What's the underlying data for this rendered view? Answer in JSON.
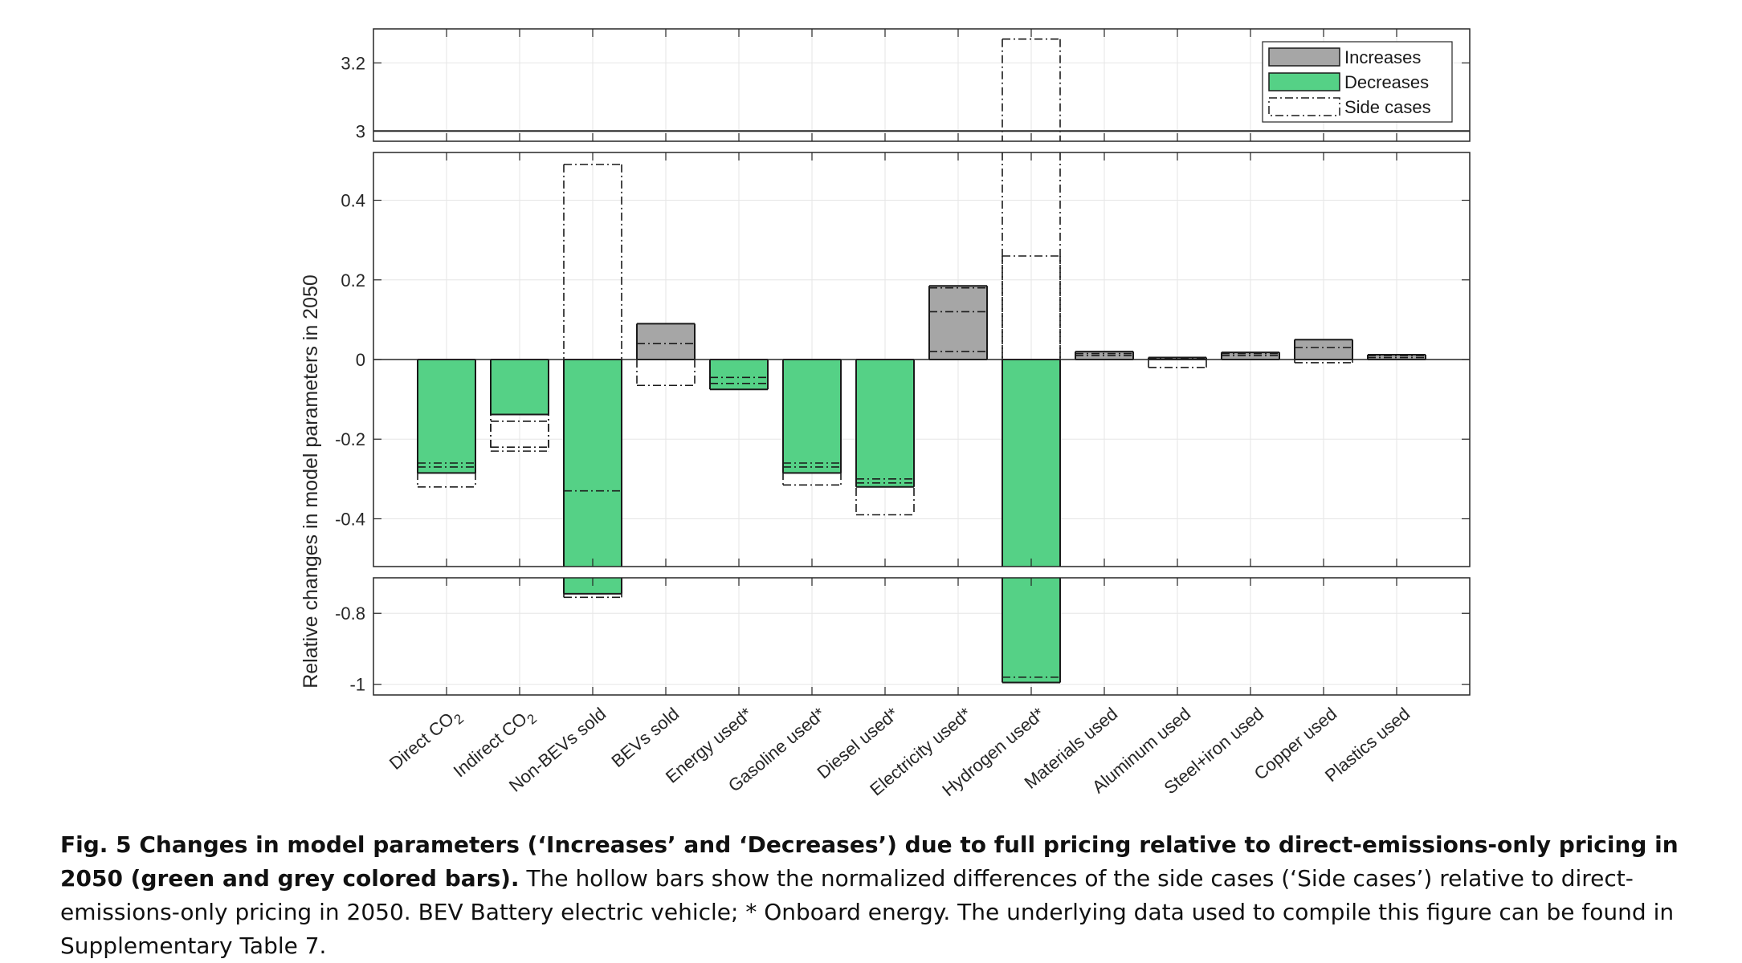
{
  "chart_data": {
    "type": "bar",
    "ylabel": "Relative changes in model parameters in 2050",
    "xlabel": "",
    "title": "",
    "broken_axis": true,
    "segments": [
      {
        "ylim": [
          2.97,
          3.3
        ],
        "ticks": [
          3,
          3.2
        ],
        "tick_labels": [
          "3",
          "3.2"
        ]
      },
      {
        "ylim": [
          -0.52,
          0.52
        ],
        "ticks": [
          -0.4,
          -0.2,
          0,
          0.2,
          0.4
        ],
        "tick_labels": [
          "-0.4",
          "-0.2",
          "0",
          "0.2",
          "0.4"
        ]
      },
      {
        "ylim": [
          -1.03,
          -0.7
        ],
        "ticks": [
          -1,
          -0.8
        ],
        "tick_labels": [
          "-1",
          "-0.8"
        ]
      }
    ],
    "grid": true,
    "legend_position": "top-right",
    "legend": [
      {
        "label": "Increases",
        "style": "filled",
        "color": "#a6a6a6"
      },
      {
        "label": "Decreases",
        "style": "filled",
        "color": "#55d186"
      },
      {
        "label": "Side cases",
        "style": "dash-dot outline",
        "color": "#000000"
      }
    ],
    "categories": [
      "Direct CO2",
      "Indirect CO2",
      "Non-BEVs sold",
      "BEVs sold",
      "Energy used*",
      "Gasoline used*",
      "Diesel used*",
      "Electricity used*",
      "Hydrogen used*",
      "Materials used",
      "Aluminum used",
      "Steel+iron used",
      "Copper used",
      "Plastics used"
    ],
    "category_labels": [
      {
        "text": "Direct CO",
        "sub": "2"
      },
      {
        "text": "Indirect CO",
        "sub": "2"
      },
      {
        "text": "Non-BEVs sold",
        "sub": ""
      },
      {
        "text": "BEVs sold",
        "sub": ""
      },
      {
        "text": "Energy used*",
        "sub": ""
      },
      {
        "text": "Gasoline used*",
        "sub": ""
      },
      {
        "text": "Diesel used*",
        "sub": ""
      },
      {
        "text": "Electricity used*",
        "sub": ""
      },
      {
        "text": "Hydrogen used*",
        "sub": ""
      },
      {
        "text": "Materials used",
        "sub": ""
      },
      {
        "text": "Aluminum used",
        "sub": ""
      },
      {
        "text": "Steel+iron used",
        "sub": ""
      },
      {
        "text": "Copper used",
        "sub": ""
      },
      {
        "text": "Plastics used",
        "sub": ""
      }
    ],
    "series": [
      {
        "name": "Increases / Decreases",
        "values": [
          -0.285,
          -0.138,
          -0.745,
          0.09,
          -0.075,
          -0.285,
          -0.32,
          0.185,
          -0.995,
          0.02,
          0.005,
          0.018,
          0.05,
          0.012
        ]
      },
      {
        "name": "Side cases",
        "values": [
          [
            -0.32,
            -0.26,
            -0.27
          ],
          [
            -0.23,
            -0.155,
            -0.22
          ],
          [
            0.49,
            -0.33,
            -0.755
          ],
          [
            -0.065,
            0.04
          ],
          [
            -0.06,
            -0.045
          ],
          [
            -0.315,
            -0.26,
            -0.27
          ],
          [
            -0.39,
            -0.3,
            -0.31
          ],
          [
            0.18,
            0.12,
            0.02
          ],
          [
            3.27,
            0.26,
            -0.98
          ],
          [
            0.015,
            0.01
          ],
          [
            -0.02,
            0.003
          ],
          [
            0.015,
            0.01
          ],
          [
            -0.008,
            0.03
          ],
          [
            0.01,
            0.005
          ]
        ]
      }
    ]
  },
  "caption": {
    "bold": "Fig. 5 Changes in model parameters (‘Increases’ and ‘Decreases’) due to full pricing relative to direct-emissions-only pricing in 2050 (green and grey colored bars).",
    "text": " The hollow bars show the normalized differences of the side cases (‘Side cases’) relative to direct-emissions-only pricing in 2050. BEV Battery electric vehicle; * Onboard energy. The underlying data used to compile this figure can be found in Supplementary Table 7."
  }
}
